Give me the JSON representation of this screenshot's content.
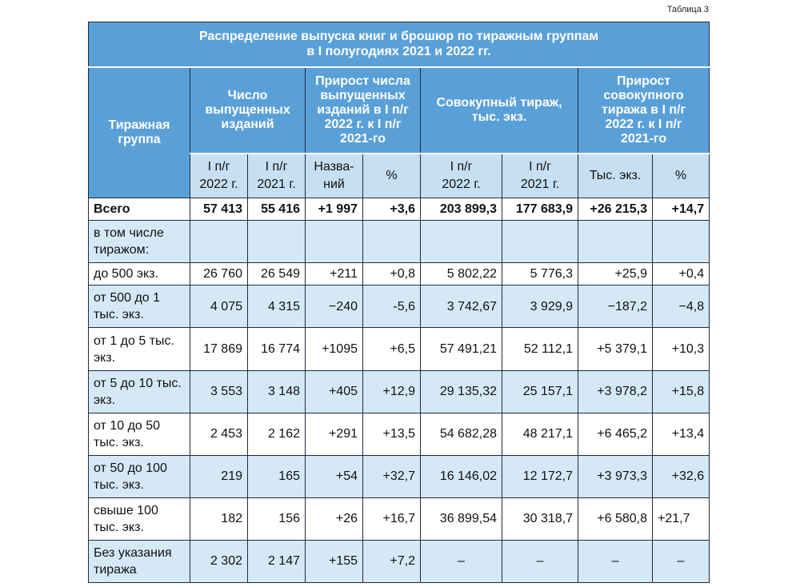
{
  "table_label": "Таблица 3",
  "title_line1": "Распределение выпуска книг и брошюр по тиражным группам",
  "title_line2": "в I полугодиях 2021 и 2022 гг.",
  "headers": {
    "group": "Тиражная группа",
    "count": "Число выпущенных изданий",
    "growth_count": "Прирост числа выпущенных изданий в I п/г 2022 г. к I п/г 2021-го",
    "circulation": "Совокупный тираж, тыс. экз.",
    "growth_circ": "Прирост совокупного тиража в I п/г 2022 г. к I п/г 2021-го"
  },
  "subheaders": {
    "count_2022": "I п/г 2022 г.",
    "count_2021": "I п/г 2021 г.",
    "names": "Назва- ний",
    "pct1": "%",
    "circ_2022": "I п/г 2022 г.",
    "circ_2021": "I п/г 2021 г.",
    "thous": "Тыс. экз.",
    "pct2": "%"
  },
  "rows": [
    {
      "label": "Всего",
      "c22": "57 413",
      "c21": "55 416",
      "gn": "+1 997",
      "gp": "+3,6",
      "t22": "203 899,3",
      "t21": "177 683,9",
      "gt": "+26 215,3",
      "gtp": "+14,7"
    },
    {
      "label": "в том числе тиражом:",
      "c22": "",
      "c21": "",
      "gn": "",
      "gp": "",
      "t22": "",
      "t21": "",
      "gt": "",
      "gtp": ""
    },
    {
      "label": "до 500 экз.",
      "c22": "26 760",
      "c21": "26 549",
      "gn": "+211",
      "gp": "+0,8",
      "t22": "5 802,22",
      "t21": "5 776,3",
      "gt": "+25,9",
      "gtp": "+0,4"
    },
    {
      "label": "от 500 до 1 тыс. экз.",
      "c22": "4 075",
      "c21": "4 315",
      "gn": "−240",
      "gp": "-5,6",
      "t22": "3 742,67",
      "t21": "3 929,9",
      "gt": "−187,2",
      "gtp": "−4,8"
    },
    {
      "label": "от 1 до 5 тыс. экз.",
      "c22": "17 869",
      "c21": "16 774",
      "gn": "+1095",
      "gp": "+6,5",
      "t22": "57 491,21",
      "t21": "52 112,1",
      "gt": "+5 379,1",
      "gtp": "+10,3"
    },
    {
      "label": "от 5 до 10 тыс. экз.",
      "c22": "3 553",
      "c21": "3 148",
      "gn": "+405",
      "gp": "+12,9",
      "t22": "29 135,32",
      "t21": "25 157,1",
      "gt": "+3 978,2",
      "gtp": "+15,8"
    },
    {
      "label": "от 10 до 50 тыс. экз.",
      "c22": "2 453",
      "c21": "2 162",
      "gn": "+291",
      "gp": "+13,5",
      "t22": "54 682,28",
      "t21": "48 217,1",
      "gt": "+6 465,2",
      "gtp": "+13,4"
    },
    {
      "label": "от 50 до 100 тыс. экз.",
      "c22": "219",
      "c21": "165",
      "gn": "+54",
      "gp": "+32,7",
      "t22": "16 146,02",
      "t21": "12 172,7",
      "gt": "+3 973,3",
      "gtp": "+32,6"
    },
    {
      "label": "свыше 100 тыс. экз.",
      "c22": "182",
      "c21": "156",
      "gn": "+26",
      "gp": "+16,7",
      "t22": "36 899,54",
      "t21": "30 318,7",
      "gt": "+6 580,8",
      "gtp": "+21,7"
    },
    {
      "label": "Без указания тиража",
      "c22": "2 302",
      "c21": "2 147",
      "gn": "+155",
      "gp": "+7,2",
      "t22": "–",
      "t21": "–",
      "gt": "–",
      "gtp": "–"
    }
  ]
}
